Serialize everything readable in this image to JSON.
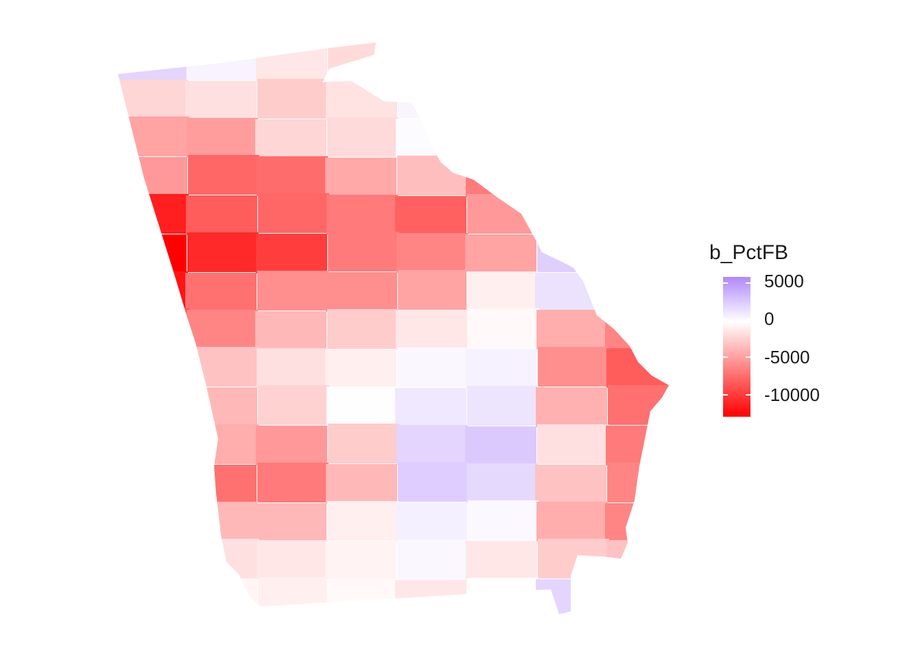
{
  "legend": {
    "title": "b_PctFB",
    "labels": [
      "5000",
      "0",
      "-5000",
      "-10000"
    ],
    "colors": {
      "high": "#b088fc",
      "mid": "#ffffff",
      "low": "#ff0000"
    }
  },
  "scale": {
    "min": -12500,
    "max": 6200
  },
  "counties": [
    {
      "v": 2200
    },
    {
      "v": 600
    },
    {
      "v": -1200
    },
    {
      "v": -1800
    },
    {
      "v": 3200
    },
    {
      "v": 4200
    },
    {
      "v": 2600
    },
    {
      "v": 200
    },
    {
      "v": -2000
    },
    {
      "v": -1500
    },
    {
      "v": -2500
    },
    {
      "v": -1400
    },
    {
      "v": 500
    },
    {
      "v": 3600
    },
    {
      "v": 1500
    },
    {
      "v": -1000
    },
    {
      "v": -4500
    },
    {
      "v": -4800
    },
    {
      "v": -2000
    },
    {
      "v": -1800
    },
    {
      "v": 200
    },
    {
      "v": -2500
    },
    {
      "v": -5500
    },
    {
      "v": -6500
    },
    {
      "v": -5000
    },
    {
      "v": -7500
    },
    {
      "v": -7200
    },
    {
      "v": -4200
    },
    {
      "v": -3200
    },
    {
      "v": -6500
    },
    {
      "v": -7800
    },
    {
      "v": -5800
    },
    {
      "v": -11000
    },
    {
      "v": -8000
    },
    {
      "v": -7500
    },
    {
      "v": -6500
    },
    {
      "v": -7800
    },
    {
      "v": -5000
    },
    {
      "v": -200
    },
    {
      "v": 3500
    },
    {
      "v": -12500
    },
    {
      "v": -10500
    },
    {
      "v": -9500
    },
    {
      "v": -6500
    },
    {
      "v": -6000
    },
    {
      "v": -4500
    },
    {
      "v": 2500
    },
    {
      "v": 5800
    },
    {
      "v": -11500
    },
    {
      "v": -7000
    },
    {
      "v": -5500
    },
    {
      "v": -5500
    },
    {
      "v": -4500
    },
    {
      "v": -800
    },
    {
      "v": 1500
    },
    {
      "v": -500
    },
    {
      "v": -8500
    },
    {
      "v": -6000
    },
    {
      "v": -3500
    },
    {
      "v": -2500
    },
    {
      "v": -1200
    },
    {
      "v": -300
    },
    {
      "v": -4000
    },
    {
      "v": -6000
    },
    {
      "v": -5000
    },
    {
      "v": -3000
    },
    {
      "v": -1500
    },
    {
      "v": -800
    },
    {
      "v": 400
    },
    {
      "v": 700
    },
    {
      "v": -5500
    },
    {
      "v": -8000
    },
    {
      "v": -4000
    },
    {
      "v": -3500
    },
    {
      "v": -2200
    },
    {
      "v": 100
    },
    {
      "v": 1200
    },
    {
      "v": 1400
    },
    {
      "v": -3800
    },
    {
      "v": -7000
    },
    {
      "v": -5000
    },
    {
      "v": -4000
    },
    {
      "v": -5000
    },
    {
      "v": -2500
    },
    {
      "v": 2200
    },
    {
      "v": 2800
    },
    {
      "v": -1500
    },
    {
      "v": -6500
    },
    {
      "v": -6500
    },
    {
      "v": -7000
    },
    {
      "v": -6500
    },
    {
      "v": -3500
    },
    {
      "v": 2600
    },
    {
      "v": 2000
    },
    {
      "v": -3000
    },
    {
      "v": -6000
    },
    {
      "v": -1500
    },
    {
      "v": -3500
    },
    {
      "v": -3500
    },
    {
      "v": -800
    },
    {
      "v": 800
    },
    {
      "v": 300
    },
    {
      "v": -4000
    },
    {
      "v": -6000
    },
    {
      "v": 1200
    },
    {
      "v": -1500
    },
    {
      "v": -1200
    },
    {
      "v": -600
    },
    {
      "v": 400
    },
    {
      "v": -1200
    },
    {
      "v": -2500
    },
    {
      "v": -3000
    },
    {
      "v": 800
    },
    {
      "v": -500
    },
    {
      "v": -800
    },
    {
      "v": -300
    },
    {
      "v": -1200
    },
    {
      "v": 0
    },
    {
      "v": 2200
    },
    {
      "v": -2500
    }
  ]
}
